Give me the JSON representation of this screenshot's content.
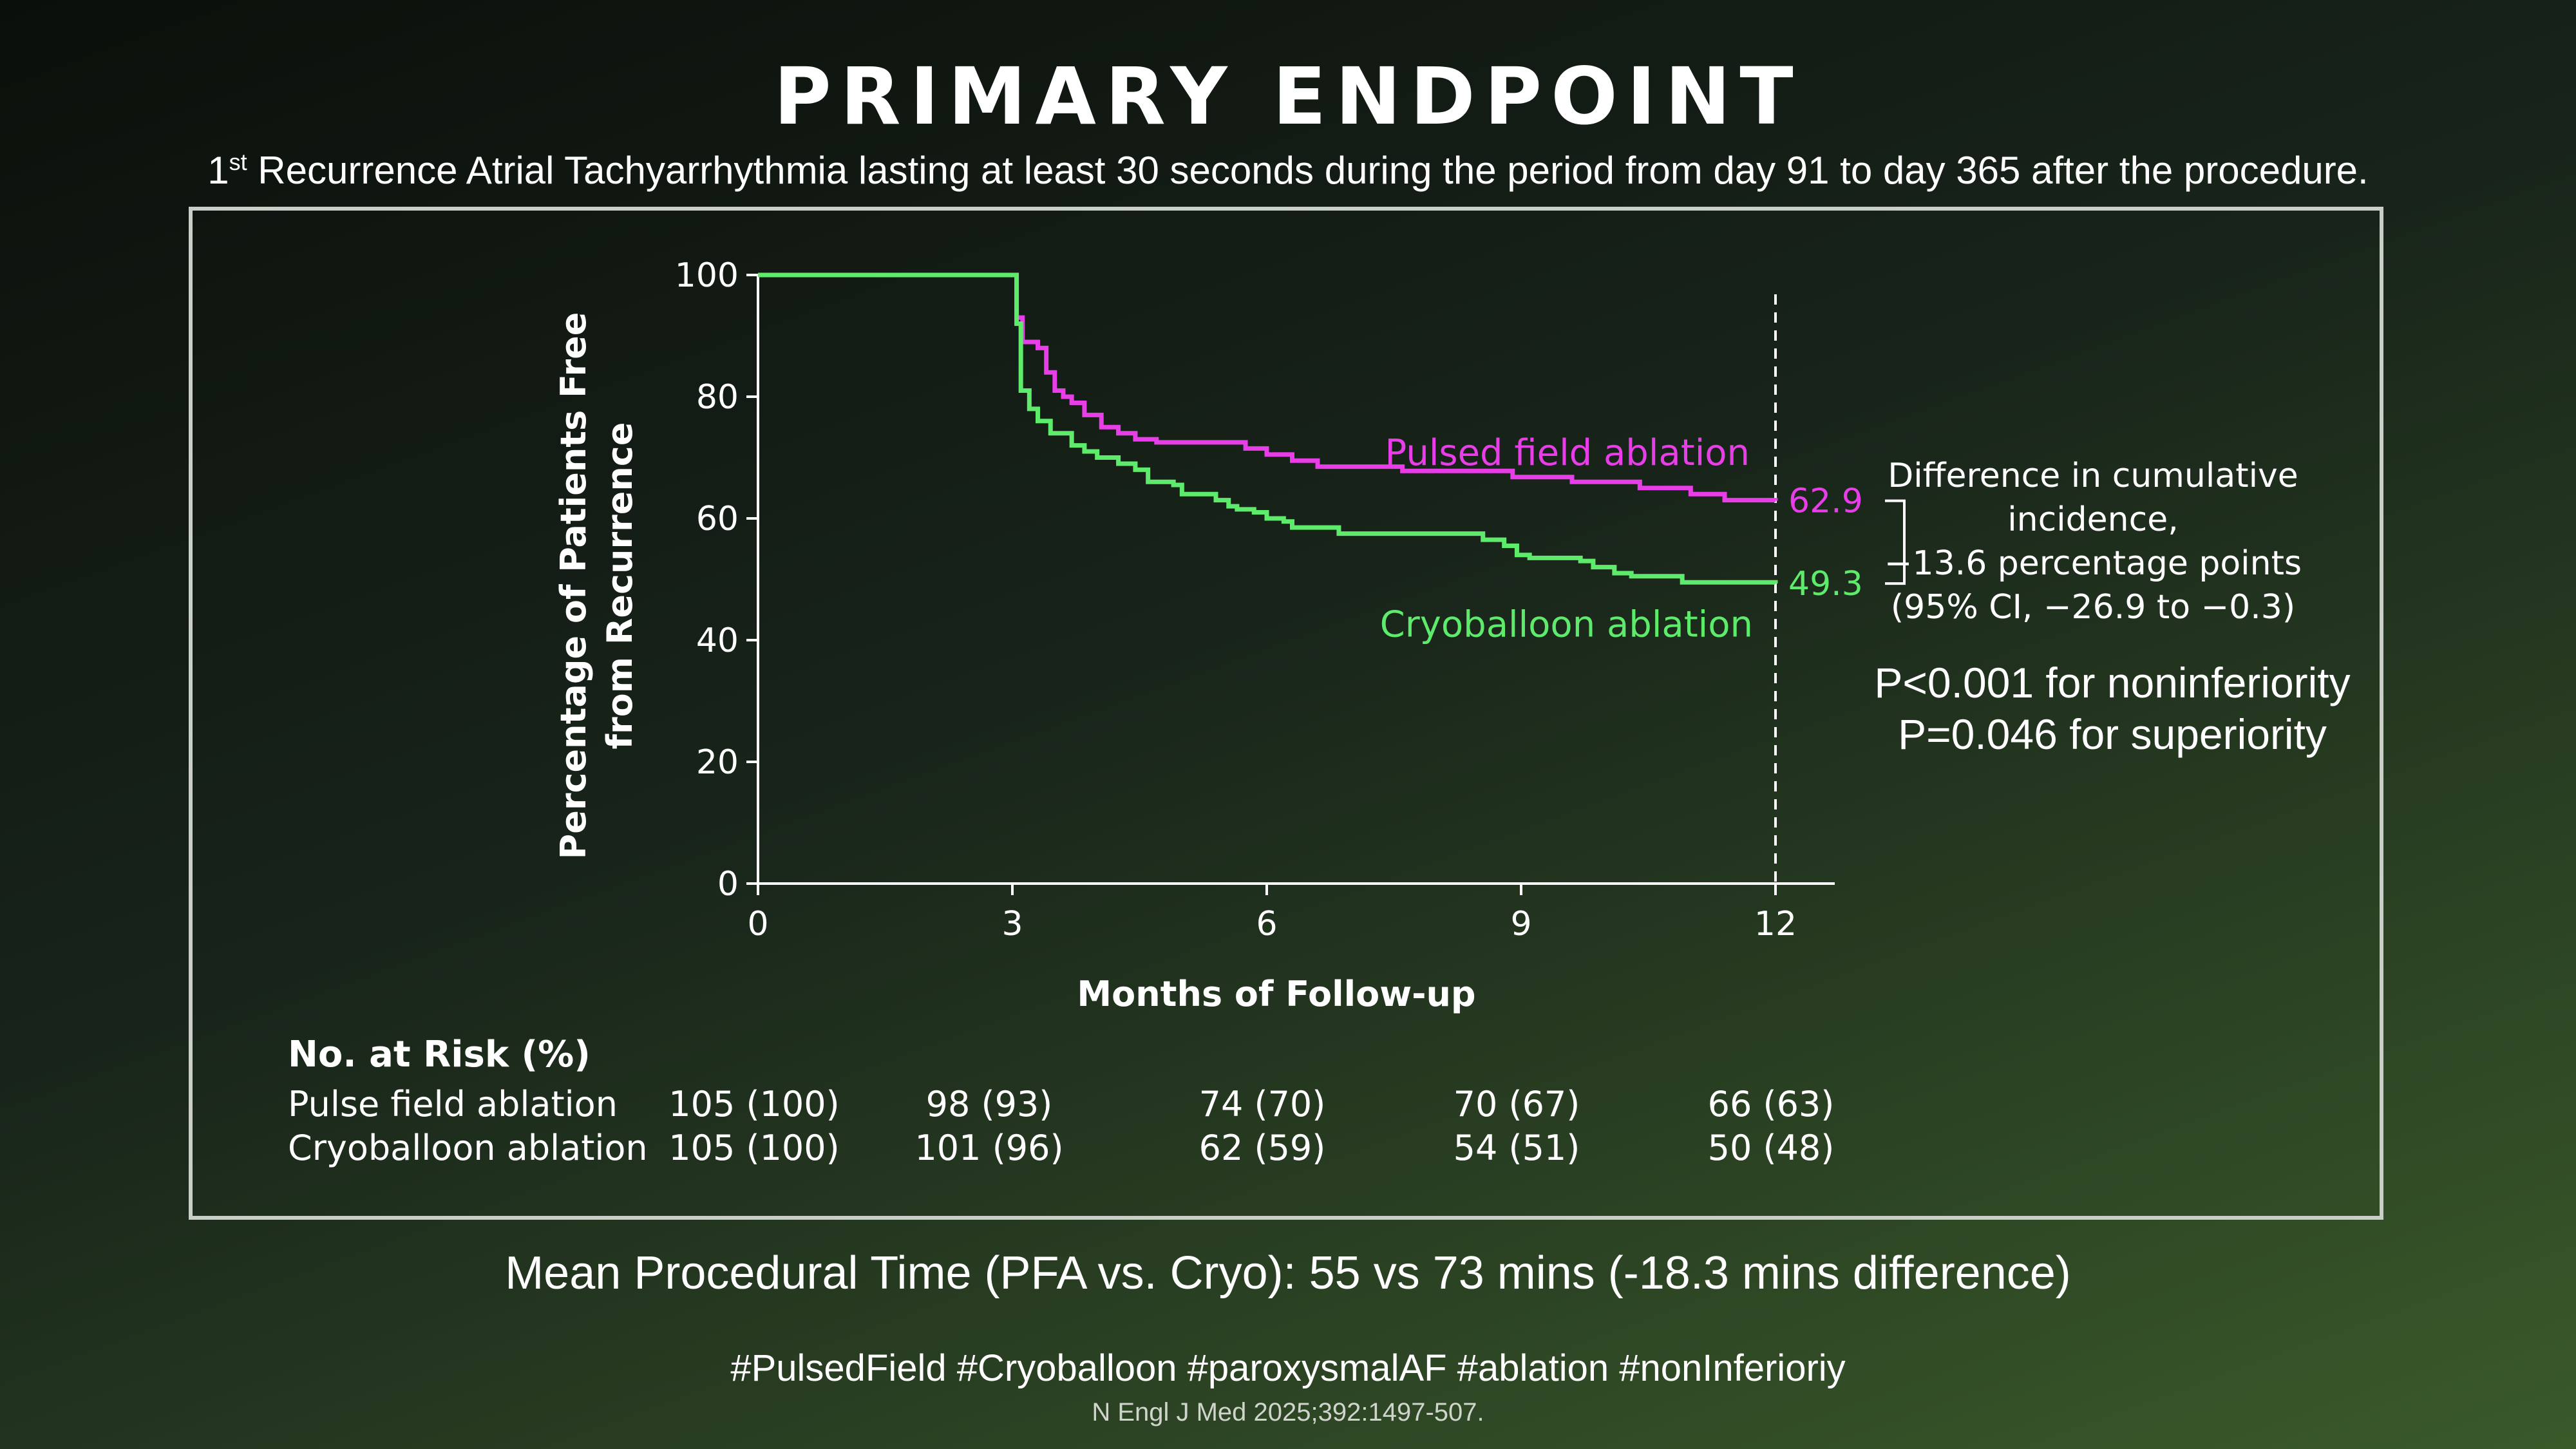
{
  "title": "PRIMARY ENDPOINT",
  "subtitle": {
    "prefix": "1",
    "superscript": "st",
    "text": " Recurrence Atrial Tachyarrhythmia lasting at least 30 seconds during the period from day 91 to day 365 after the procedure."
  },
  "chart_data": {
    "type": "line",
    "xlabel": "Months of Follow-up",
    "ylabel_lines": [
      "Percentage of Patients Free",
      "from Recurrence"
    ],
    "xlim": [
      0,
      12
    ],
    "ylim": [
      0,
      100
    ],
    "x_ticks": [
      "0",
      "3",
      "6",
      "9",
      "12"
    ],
    "y_ticks": [
      "0",
      "20",
      "40",
      "60",
      "80",
      "100"
    ],
    "grid": false,
    "reference_line_x": 12,
    "series": [
      {
        "name": "Pulsed field ablation",
        "color": "#e83ee8",
        "end_label": "62.9",
        "points": [
          [
            0,
            100
          ],
          [
            3.0,
            100
          ],
          [
            3.05,
            93
          ],
          [
            3.12,
            89
          ],
          [
            3.3,
            88
          ],
          [
            3.4,
            84
          ],
          [
            3.5,
            81
          ],
          [
            3.6,
            80
          ],
          [
            3.7,
            79
          ],
          [
            3.85,
            77
          ],
          [
            4.05,
            75
          ],
          [
            4.25,
            74
          ],
          [
            4.45,
            73
          ],
          [
            4.7,
            72.5
          ],
          [
            5.6,
            72.5
          ],
          [
            5.75,
            71.5
          ],
          [
            6.0,
            70.5
          ],
          [
            6.3,
            69.5
          ],
          [
            6.6,
            68.5
          ],
          [
            7.2,
            68.5
          ],
          [
            7.6,
            67.8
          ],
          [
            8.4,
            67.8
          ],
          [
            8.9,
            66.8
          ],
          [
            9.6,
            66
          ],
          [
            10.4,
            65
          ],
          [
            11.0,
            64
          ],
          [
            11.4,
            63
          ],
          [
            12,
            62.9
          ]
        ]
      },
      {
        "name": "Cryoballoon ablation",
        "color": "#5eea6a",
        "end_label": "49.3",
        "points": [
          [
            0,
            100
          ],
          [
            3.0,
            100
          ],
          [
            3.05,
            92
          ],
          [
            3.1,
            81
          ],
          [
            3.2,
            78
          ],
          [
            3.3,
            76
          ],
          [
            3.45,
            74
          ],
          [
            3.7,
            72
          ],
          [
            3.85,
            71
          ],
          [
            4.0,
            70
          ],
          [
            4.25,
            69
          ],
          [
            4.45,
            68
          ],
          [
            4.6,
            66
          ],
          [
            4.9,
            65.5
          ],
          [
            5.0,
            64
          ],
          [
            5.4,
            63
          ],
          [
            5.55,
            62
          ],
          [
            5.65,
            61.5
          ],
          [
            5.85,
            61
          ],
          [
            6.0,
            60
          ],
          [
            6.2,
            59.5
          ],
          [
            6.3,
            58.5
          ],
          [
            6.85,
            57.5
          ],
          [
            8.2,
            57.5
          ],
          [
            8.55,
            56.5
          ],
          [
            8.8,
            55.5
          ],
          [
            8.95,
            54
          ],
          [
            9.1,
            53.5
          ],
          [
            9.7,
            53
          ],
          [
            9.85,
            52
          ],
          [
            10.1,
            51
          ],
          [
            10.3,
            50.5
          ],
          [
            10.9,
            49.5
          ],
          [
            12,
            49.3
          ]
        ]
      }
    ],
    "series_labels": [
      "Pulsed field ablation",
      "Cryoballoon ablation"
    ]
  },
  "difference_note": {
    "lines": [
      "Difference in cumulative",
      "incidence,",
      "−13.6 percentage points",
      "(95% CI, −26.9 to −0.3)"
    ]
  },
  "p_values": {
    "noninferiority": "P<0.001 for noninferiority",
    "superiority": "P=0.046 for superiority"
  },
  "risk_table": {
    "title": "No. at Risk (%)",
    "rows": [
      {
        "label": "Pulse field ablation",
        "values": [
          "105 (100)",
          "98 (93)",
          "74 (70)",
          "70 (67)",
          "66 (63)"
        ]
      },
      {
        "label": "Cryoballoon ablation",
        "values": [
          "105 (100)",
          "101 (96)",
          "62 (59)",
          "54 (51)",
          "50 (48)"
        ]
      }
    ]
  },
  "procedural_time": "Mean Procedural Time (PFA vs. Cryo): 55 vs 73 mins (-18.3 mins difference)",
  "hashtags": "#PulsedField #Cryoballoon #paroxysmalAF #ablation #nonInferioriy",
  "citation": "N Engl J Med 2025;392:1497-507."
}
